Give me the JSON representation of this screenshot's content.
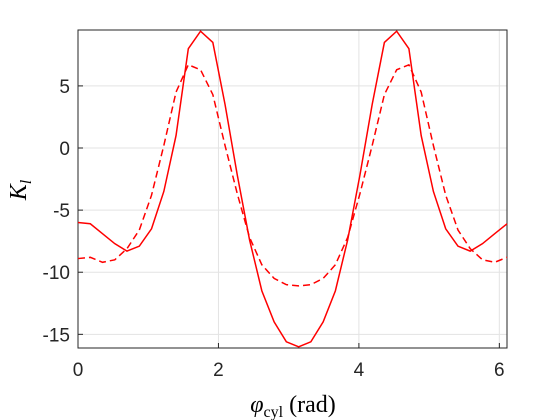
{
  "chart_data": {
    "type": "line",
    "xlabel": {
      "base": "φ",
      "sub": "cyl",
      "rest": " (rad)"
    },
    "ylabel": {
      "base": "K",
      "sub": "l"
    },
    "x": [
      0,
      0.175,
      0.349,
      0.524,
      0.698,
      0.873,
      1.047,
      1.222,
      1.396,
      1.571,
      1.745,
      1.92,
      2.094,
      2.269,
      2.443,
      2.618,
      2.793,
      2.967,
      3.142,
      3.316,
      3.491,
      3.665,
      3.84,
      4.014,
      4.189,
      4.363,
      4.538,
      4.712,
      4.887,
      5.061,
      5.236,
      5.411,
      5.585,
      5.76,
      5.934,
      6.109
    ],
    "series": [
      {
        "color": "#ff0000",
        "dashed": false,
        "values": [
          -6.0,
          -6.1,
          -6.9,
          -7.7,
          -8.3,
          -7.9,
          -6.5,
          -3.5,
          1.0,
          8.0,
          9.4,
          8.5,
          3.5,
          -2.2,
          -7.4,
          -11.5,
          -14.0,
          -15.6,
          -16.0,
          -15.6,
          -14.0,
          -11.5,
          -7.4,
          -2.2,
          3.5,
          8.5,
          9.4,
          8.0,
          1.0,
          -3.5,
          -6.5,
          -7.9,
          -8.3,
          -7.7,
          -6.9,
          -6.1
        ]
      },
      {
        "color": "#ff0000",
        "dashed": true,
        "values": [
          -8.9,
          -8.8,
          -9.2,
          -9.0,
          -8.1,
          -6.6,
          -3.8,
          0.2,
          4.5,
          6.7,
          6.3,
          4.3,
          0.2,
          -3.7,
          -7.2,
          -9.4,
          -10.5,
          -11.0,
          -11.1,
          -11.0,
          -10.5,
          -9.4,
          -7.2,
          -3.7,
          0.2,
          4.3,
          6.3,
          6.7,
          4.5,
          0.2,
          -3.8,
          -6.6,
          -8.1,
          -9.0,
          -9.2,
          -8.8
        ]
      }
    ],
    "xlim": [
      0,
      6.109
    ],
    "xticks": [
      0,
      2,
      4,
      6
    ],
    "ylim": [
      -16.1,
      9.5
    ],
    "yticks": [
      -15,
      -10,
      -5,
      0,
      5
    ],
    "grid": true
  }
}
